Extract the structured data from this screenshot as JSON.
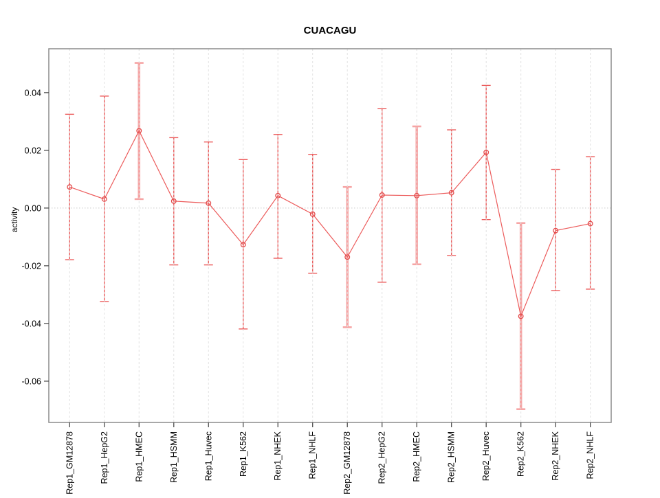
{
  "chart_data": {
    "type": "line",
    "subtype": "points-with-error-bars",
    "title": "CUACAGU",
    "xlabel": "",
    "ylabel": "activity",
    "categories": [
      "Rep1_GM12878",
      "Rep1_HepG2",
      "Rep1_HMEC",
      "Rep1_HSMM",
      "Rep1_Huvec",
      "Rep1_K562",
      "Rep1_NHEK",
      "Rep1_NHLF",
      "Rep2_GM12878",
      "Rep2_HepG2",
      "Rep2_HMEC",
      "Rep2_HSMM",
      "Rep2_Huvec",
      "Rep2_K562",
      "Rep2_NHEK",
      "Rep2_NHLF"
    ],
    "series": [
      {
        "name": "activity",
        "values": [
          0.0073,
          0.0031,
          0.0268,
          0.0024,
          0.0017,
          -0.0127,
          0.0043,
          -0.0021,
          -0.017,
          0.0045,
          0.0043,
          0.0053,
          0.0193,
          -0.0375,
          -0.0078,
          -0.0054
        ],
        "err_high": [
          0.0325,
          0.0388,
          0.0503,
          0.0244,
          0.0229,
          0.0168,
          0.0255,
          0.0186,
          0.0073,
          0.0345,
          0.0283,
          0.0271,
          0.0425,
          -0.0052,
          0.0134,
          0.0178
        ],
        "err_low": [
          -0.0179,
          -0.0324,
          0.0031,
          -0.0197,
          -0.0197,
          -0.0419,
          -0.0174,
          -0.0226,
          -0.0413,
          -0.0257,
          -0.0195,
          -0.0165,
          -0.004,
          -0.0697,
          -0.0286,
          -0.0281
        ]
      }
    ],
    "heavy_error_bars": [
      "Rep1_HMEC",
      "Rep2_GM12878",
      "Rep2_HMEC",
      "Rep2_K562"
    ],
    "ylim": [
      -0.0743,
      0.0552
    ],
    "yticks": [
      {
        "value": 0.04,
        "label": "0.04"
      },
      {
        "value": 0.02,
        "label": "0.02"
      },
      {
        "value": 0.0,
        "label": "0.00"
      },
      {
        "value": -0.02,
        "label": "-0.02"
      },
      {
        "value": -0.04,
        "label": "-0.04"
      },
      {
        "value": -0.06,
        "label": "-0.06"
      }
    ],
    "zero_reference_line": 0.0,
    "grid": "vertical dashed gridline at each category; dotted horizontal line at 0",
    "legend_position": "none",
    "marker": "open-circle",
    "xticklabel_rotation": 90,
    "colors": {
      "point": "#e34a4a",
      "line": "#ec5b5b",
      "error_bar": "#ec5b5b",
      "error_bar_heavy": "#f6a5a5",
      "gridline": "#e1e1e1",
      "zero_line": "#c9c9c9",
      "axis_box": "#8c8c8c",
      "tick_mark": "#4d4d4d",
      "text": "#000000",
      "background": "#ffffff"
    }
  }
}
